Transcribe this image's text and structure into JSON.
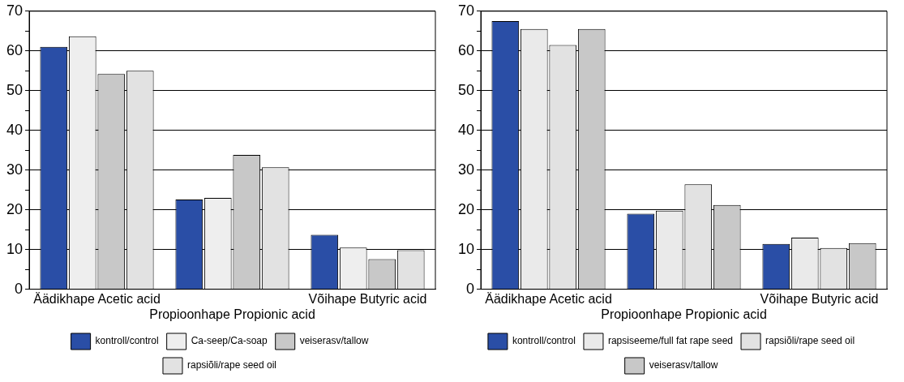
{
  "chart_data": [
    {
      "type": "bar",
      "categories": [
        "Äädikhape Acetic acid",
        "Propioonhape Propionic acid",
        "Võihape Butyric acid"
      ],
      "series": [
        {
          "name": "kontroll/control",
          "color": "#2a4ea6",
          "values": [
            61,
            22.6,
            13.7
          ]
        },
        {
          "name": "Ca-seep/Ca-soap",
          "color": "#eeeeee",
          "values": [
            63.7,
            23,
            10.5
          ]
        },
        {
          "name": "veiserasv/tallow",
          "color": "#c8c8c8",
          "values": [
            54.2,
            33.8,
            7.6
          ]
        },
        {
          "name": "rapsiõli/rape seed oil",
          "color": "#e2e2e2",
          "values": [
            55,
            30.7,
            9.8
          ]
        }
      ],
      "ylim": [
        0,
        70
      ],
      "yticks": [
        0,
        {
          "value": 5,
          "label": null
        },
        10,
        {
          "value": 15,
          "label": null
        },
        20,
        {
          "value": 25,
          "label": null
        },
        30,
        {
          "value": 35,
          "label": null
        },
        40,
        {
          "value": 45,
          "label": null
        },
        50,
        {
          "value": 55,
          "label": null
        },
        60,
        {
          "value": 65,
          "label": null
        },
        70
      ],
      "grid": "y",
      "legend": "bottom"
    },
    {
      "type": "bar",
      "categories": [
        "Äädikhape Acetic acid",
        "Propioonhape Propionic acid",
        "Võihape Butyric acid"
      ],
      "series": [
        {
          "name": "kontroll/control",
          "color": "#2a4ea6",
          "values": [
            67.5,
            19,
            11.4
          ]
        },
        {
          "name": "rapsiseeme/full fat rape seed",
          "color": "#eaeaea",
          "values": [
            65.5,
            19.8,
            13
          ]
        },
        {
          "name": "rapsiõli/rape seed oil",
          "color": "#e2e2e2",
          "values": [
            61.5,
            26.4,
            10.4
          ]
        },
        {
          "name": "veiserasv/tallow",
          "color": "#c8c8c8",
          "values": [
            65.5,
            21.2,
            11.6
          ]
        }
      ],
      "ylim": [
        0,
        70
      ],
      "yticks": [
        0,
        {
          "value": 5,
          "label": null
        },
        10,
        {
          "value": 15,
          "label": null
        },
        20,
        {
          "value": 25,
          "label": null
        },
        30,
        {
          "value": 35,
          "label": null
        },
        40,
        {
          "value": 45,
          "label": null
        },
        50,
        {
          "value": 55,
          "label": null
        },
        60,
        {
          "value": 65,
          "label": null
        },
        70
      ],
      "grid": "y",
      "legend": "bottom"
    }
  ]
}
